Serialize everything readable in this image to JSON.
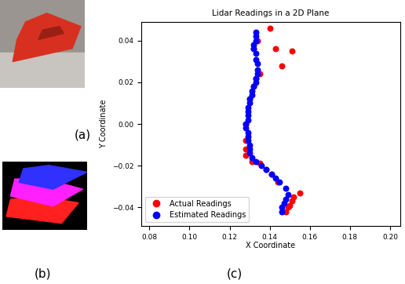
{
  "panel_labels": [
    "(a)",
    "(b)",
    "(c)"
  ],
  "chart_data": {
    "type": "scatter",
    "title": "Lidar Readings in a 2D Plane",
    "x_label": "X Coordinate",
    "y_label": "Y Coordinate",
    "xlim": [
      0.076,
      0.205
    ],
    "xticks": [
      {
        "value": 0.08,
        "label": "0.08"
      },
      {
        "value": 0.1,
        "label": "0.10"
      },
      {
        "value": 0.12,
        "label": "0.12"
      },
      {
        "value": 0.14,
        "label": "0.14"
      },
      {
        "value": 0.16,
        "label": "0.16"
      },
      {
        "value": 0.18,
        "label": "0.18"
      },
      {
        "value": 0.2,
        "label": "0.20"
      }
    ],
    "ylim": [
      -0.049,
      0.049
    ],
    "yticks": [
      {
        "value": -0.04,
        "label": "−0.04"
      },
      {
        "value": -0.02,
        "label": "−0.02"
      },
      {
        "value": 0.0,
        "label": "0.00"
      },
      {
        "value": 0.02,
        "label": "0.02"
      },
      {
        "value": 0.04,
        "label": "0.04"
      }
    ],
    "legend": "lower left",
    "series": [
      {
        "name": "Actual Readings",
        "color": "#ff0000",
        "marker": "o",
        "x": [
          0.14,
          0.134,
          0.132,
          0.143,
          0.151,
          0.146,
          0.135,
          0.133,
          0.132,
          0.13,
          0.128,
          0.128,
          0.128,
          0.128,
          0.131,
          0.135,
          0.138,
          0.141,
          0.144,
          0.155,
          0.152,
          0.151,
          0.15,
          0.149,
          0.148
        ],
        "values": [
          0.046,
          0.04,
          0.036,
          0.036,
          0.035,
          0.028,
          0.024,
          0.022,
          0.018,
          0.012,
          0.0,
          -0.008,
          -0.012,
          -0.015,
          -0.018,
          -0.019,
          -0.022,
          -0.024,
          -0.028,
          -0.033,
          -0.035,
          -0.037,
          -0.039,
          -0.04,
          -0.042
        ]
      },
      {
        "name": "Estimated Readings",
        "color": "#0000ff",
        "marker": "o",
        "x": [
          0.133,
          0.133,
          0.133,
          0.132,
          0.132,
          0.133,
          0.133,
          0.134,
          0.134,
          0.134,
          0.133,
          0.133,
          0.132,
          0.131,
          0.131,
          0.13,
          0.13,
          0.129,
          0.129,
          0.129,
          0.129,
          0.128,
          0.128,
          0.129,
          0.129,
          0.129,
          0.13,
          0.13,
          0.13,
          0.131,
          0.133,
          0.136,
          0.138,
          0.141,
          0.143,
          0.145,
          0.148,
          0.149,
          0.148,
          0.147,
          0.146,
          0.146
        ],
        "values": [
          0.044,
          0.042,
          0.04,
          0.038,
          0.036,
          0.034,
          0.031,
          0.029,
          0.026,
          0.024,
          0.022,
          0.02,
          0.018,
          0.016,
          0.014,
          0.012,
          0.01,
          0.008,
          0.006,
          0.004,
          0.002,
          0.0,
          -0.002,
          -0.004,
          -0.006,
          -0.008,
          -0.01,
          -0.012,
          -0.014,
          -0.016,
          -0.018,
          -0.02,
          -0.022,
          -0.024,
          -0.026,
          -0.028,
          -0.031,
          -0.034,
          -0.036,
          -0.038,
          -0.04,
          -0.042
        ]
      }
    ]
  }
}
